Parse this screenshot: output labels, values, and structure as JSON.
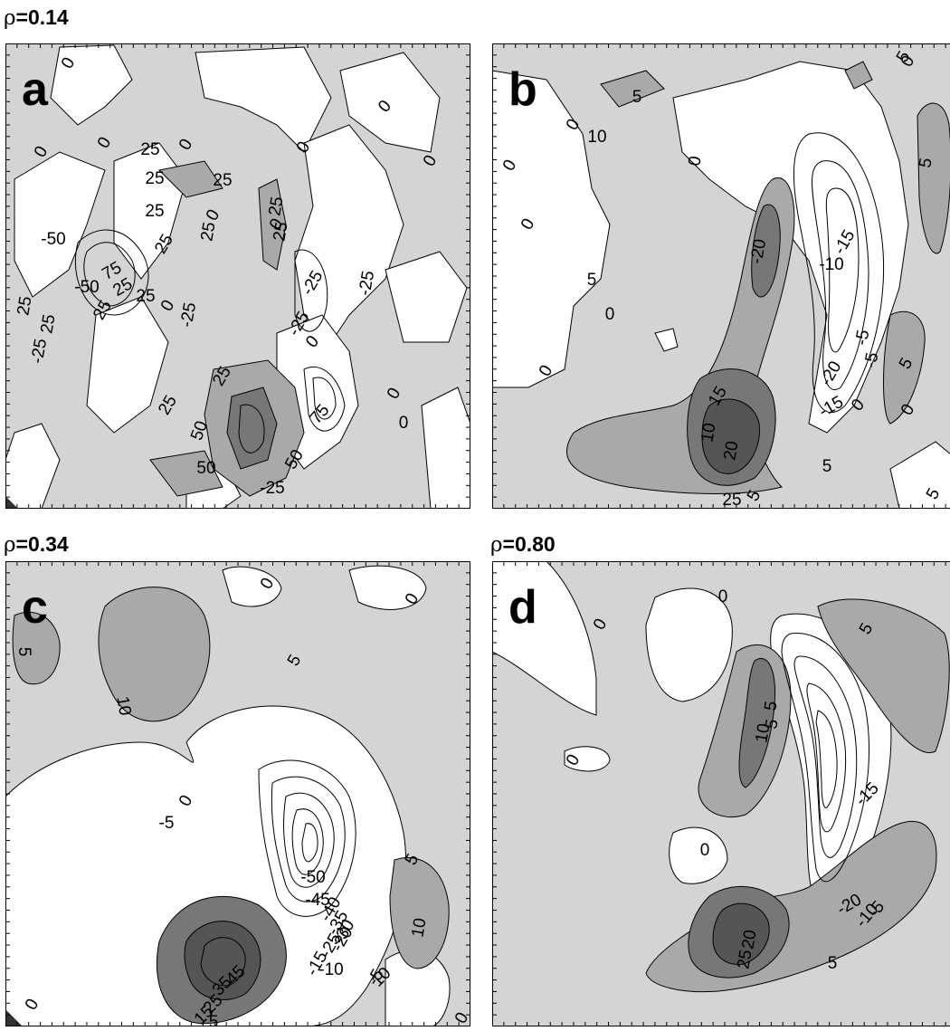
{
  "rho_labels": {
    "top_left": {
      "symbol": "ρ",
      "value": "=0.14"
    },
    "bottom_left": {
      "symbol": "ρ",
      "value": "=0.34"
    },
    "bottom_right": {
      "symbol": "ρ",
      "value": "=0.80"
    }
  },
  "colors": {
    "background_fill": "#d4d4d4",
    "low_fill": "#ffffff",
    "mid_fill": "#a9a9a9",
    "high_fill": "#777777",
    "peak_fill": "#555555",
    "line": "#000000"
  },
  "chart_data": [
    {
      "type": "contour",
      "panel_label": "a",
      "contour_labels": [
        "0",
        "0",
        "0",
        "0",
        "0",
        "0",
        "0",
        "0",
        "0",
        "0",
        "0",
        "0",
        "0",
        "25",
        "25",
        "25",
        "25",
        "25",
        "25",
        "25",
        "25",
        "25",
        "25",
        "25",
        "25",
        "25",
        "25",
        "25",
        "50",
        "50",
        "50",
        "75",
        "75",
        "-25",
        "-25",
        "-25",
        "-25",
        "-25",
        "-25",
        "-50",
        "-50"
      ]
    },
    {
      "type": "contour",
      "panel_label": "b",
      "contour_labels": [
        "5",
        "5",
        "5",
        "5",
        "5",
        "5",
        "5",
        "0",
        "0",
        "0",
        "0",
        "0",
        "0",
        "0",
        "0",
        "0",
        "-5",
        "-5",
        "-10",
        "-15",
        "-15",
        "-20",
        "-20",
        "10",
        "15",
        "20",
        "25",
        "5",
        "10"
      ]
    },
    {
      "type": "contour",
      "panel_label": "c",
      "contour_labels": [
        "0",
        "0",
        "0",
        "0",
        "0",
        "5",
        "5",
        "5",
        "10",
        "10",
        "-5",
        "-5",
        "-50",
        "-45",
        "-40",
        "-35",
        "-30",
        "-25",
        "-20",
        "-15",
        "-10",
        "45",
        "35",
        "25",
        "15",
        "5",
        "10"
      ]
    },
    {
      "type": "contour",
      "panel_label": "d",
      "contour_labels": [
        "0",
        "0",
        "0",
        "0",
        "5",
        "5",
        "10",
        "5",
        "-15",
        "-20",
        "-10",
        "-5",
        "25",
        "20",
        "5"
      ]
    }
  ]
}
